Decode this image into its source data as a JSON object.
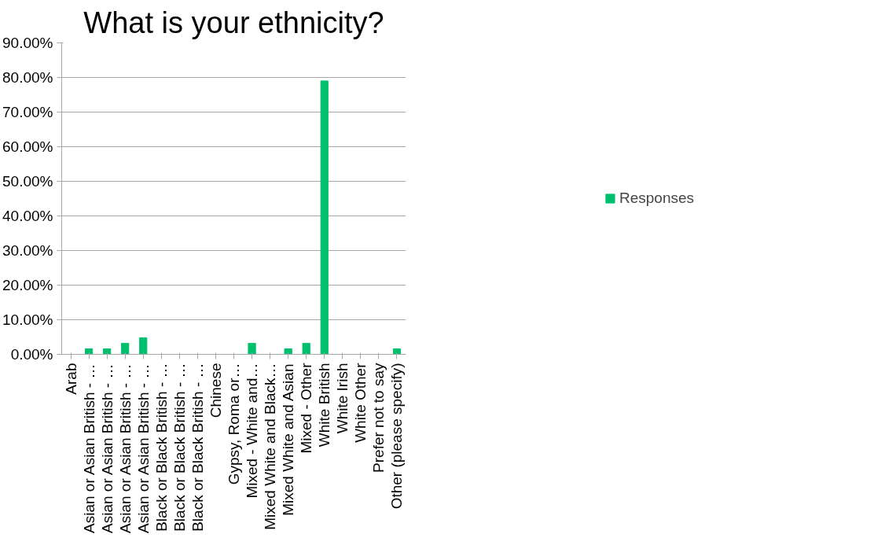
{
  "chart_data": {
    "type": "bar",
    "title": "What is your ethnicity?",
    "categories": [
      "Arab",
      "Asian or Asian British - …",
      "Asian or Asian British - …",
      "Asian or Asian British - …",
      "Asian or Asian British - …",
      "Black or Black British - …",
      "Black or Black British - …",
      "Black or Black British - …",
      "Chinese",
      "Gypsy, Roma or…",
      "Mixed - White and…",
      "Mixed White and Black…",
      "Mixed White and Asian",
      "Mixed - Other",
      "White British",
      "White Irish",
      "White Other",
      "Prefer not to say",
      "Other (please specify)"
    ],
    "series": [
      {
        "name": "Responses",
        "color": "#00c06e",
        "values": [
          0,
          1.6,
          1.6,
          3.2,
          4.8,
          0,
          0,
          0,
          0,
          0,
          3.2,
          0,
          1.6,
          3.2,
          79.0,
          0,
          0,
          0,
          1.6
        ]
      }
    ],
    "ylim": [
      0,
      90
    ],
    "yticks": [
      {
        "value": 0,
        "label": "0.00%"
      },
      {
        "value": 10,
        "label": "10.00%"
      },
      {
        "value": 20,
        "label": "20.00%"
      },
      {
        "value": 30,
        "label": "30.00%"
      },
      {
        "value": 40,
        "label": "40.00%"
      },
      {
        "value": 50,
        "label": "50.00%"
      },
      {
        "value": 60,
        "label": "60.00%"
      },
      {
        "value": 70,
        "label": "70.00%"
      },
      {
        "value": 80,
        "label": "80.00%"
      },
      {
        "value": 90,
        "label": "90.00%"
      }
    ],
    "grid": "y",
    "legend": "right"
  }
}
